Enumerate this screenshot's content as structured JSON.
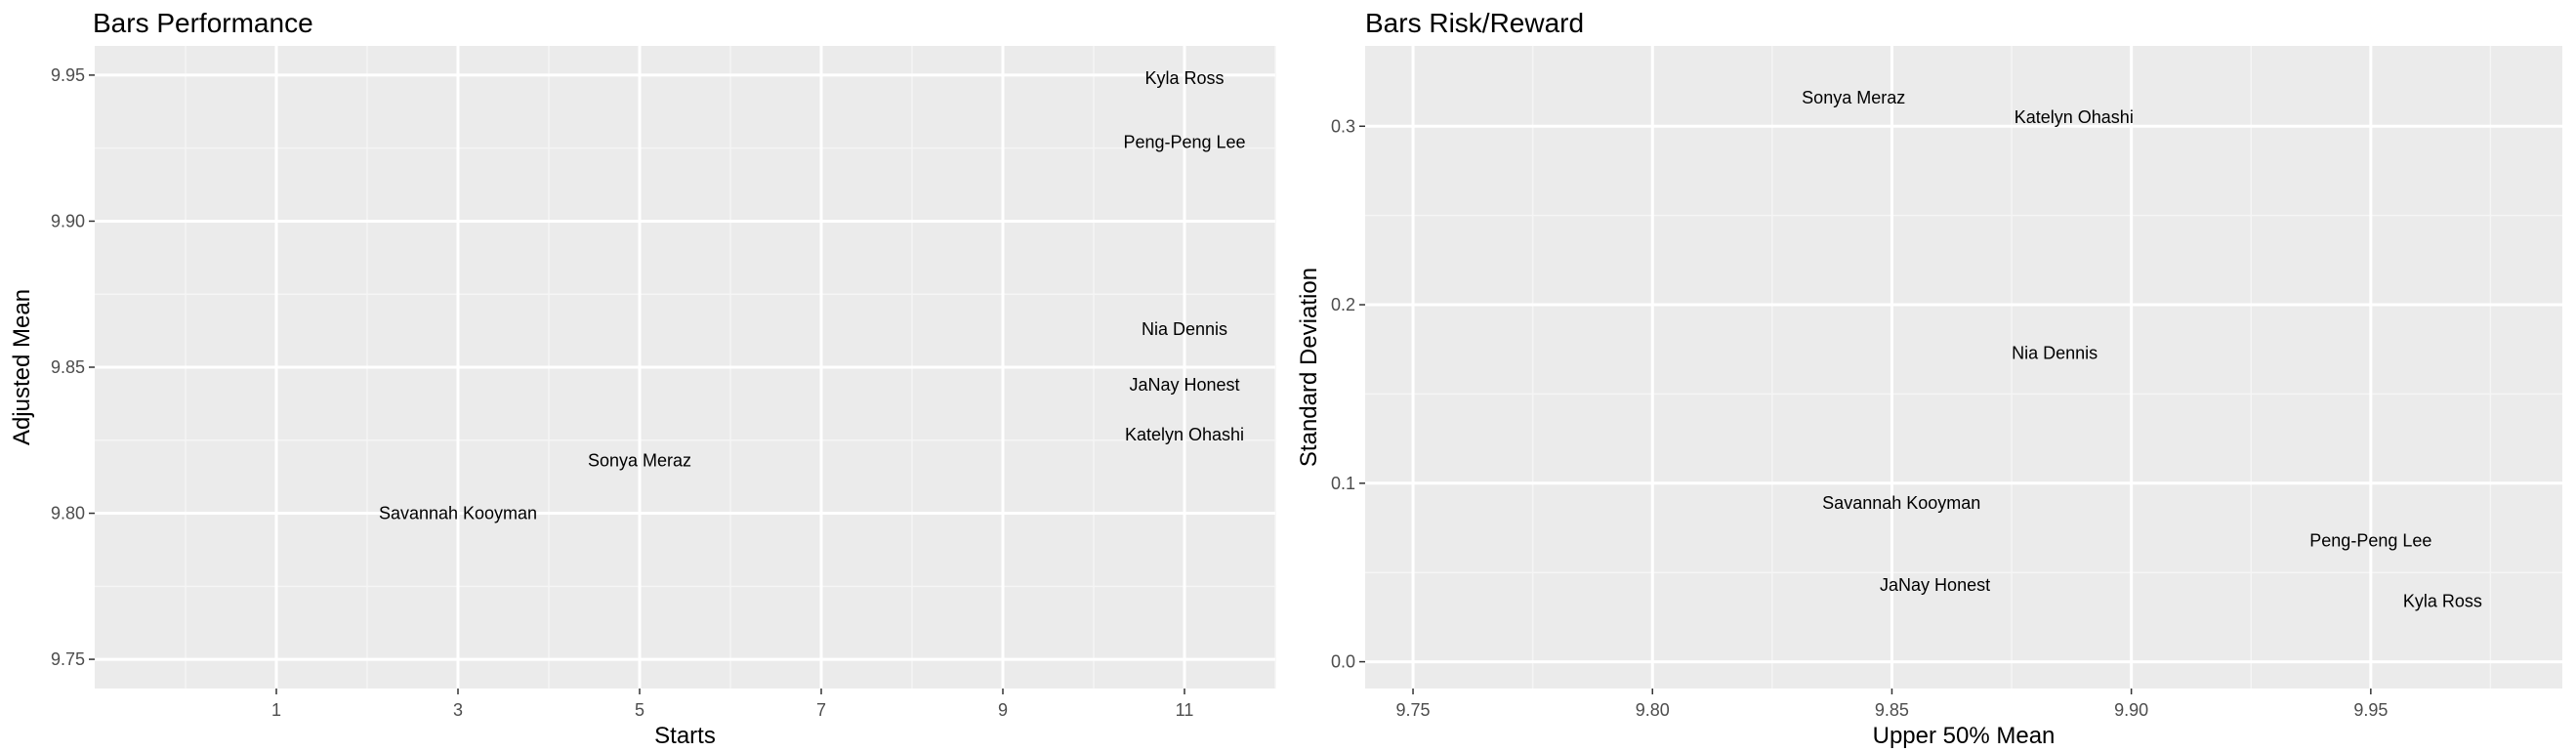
{
  "chart_data": [
    {
      "type": "scatter",
      "title": "Bars Performance",
      "xlabel": "Starts",
      "ylabel": "Adjusted Mean",
      "xlim": [
        -1,
        12
      ],
      "ylim": [
        9.74,
        9.96
      ],
      "xticks": [
        1,
        3,
        5,
        7,
        9,
        11
      ],
      "yticks": [
        9.75,
        9.8,
        9.85,
        9.9,
        9.95
      ],
      "ytick_labels": [
        "9.75",
        "9.80",
        "9.85",
        "9.90",
        "9.95"
      ],
      "xtick_labels": [
        "1",
        "3",
        "5",
        "7",
        "9",
        "11"
      ],
      "grid": true,
      "marker": "text-label",
      "points": [
        {
          "label": "Kyla Ross",
          "x": 11,
          "y": 9.949
        },
        {
          "label": "Peng-Peng Lee",
          "x": 11,
          "y": 9.927
        },
        {
          "label": "Nia Dennis",
          "x": 11,
          "y": 9.863
        },
        {
          "label": "JaNay Honest",
          "x": 11,
          "y": 9.844
        },
        {
          "label": "Katelyn Ohashi",
          "x": 11,
          "y": 9.827
        },
        {
          "label": "Sonya Meraz",
          "x": 5,
          "y": 9.818
        },
        {
          "label": "Savannah Kooyman",
          "x": 3,
          "y": 9.8
        }
      ]
    },
    {
      "type": "scatter",
      "title": "Bars Risk/Reward",
      "xlabel": "Upper 50% Mean",
      "ylabel": "Standard Deviation",
      "xlim": [
        9.74,
        9.99
      ],
      "ylim": [
        -0.015,
        0.345
      ],
      "xticks": [
        9.75,
        9.8,
        9.85,
        9.9,
        9.95
      ],
      "yticks": [
        0.0,
        0.1,
        0.2,
        0.3
      ],
      "xtick_labels": [
        "9.75",
        "9.80",
        "9.85",
        "9.90",
        "9.95"
      ],
      "ytick_labels": [
        "0.0",
        "0.1",
        "0.2",
        "0.3"
      ],
      "grid": true,
      "marker": "text-label",
      "points": [
        {
          "label": "Sonya Meraz",
          "x": 9.842,
          "y": 0.316
        },
        {
          "label": "Katelyn Ohashi",
          "x": 9.888,
          "y": 0.305
        },
        {
          "label": "Nia Dennis",
          "x": 9.884,
          "y": 0.173
        },
        {
          "label": "Savannah Kooyman",
          "x": 9.852,
          "y": 0.089
        },
        {
          "label": "Peng-Peng Lee",
          "x": 9.95,
          "y": 0.068
        },
        {
          "label": "JaNay Honest",
          "x": 9.859,
          "y": 0.043
        },
        {
          "label": "Kyla Ross",
          "x": 9.965,
          "y": 0.034
        }
      ]
    }
  ]
}
